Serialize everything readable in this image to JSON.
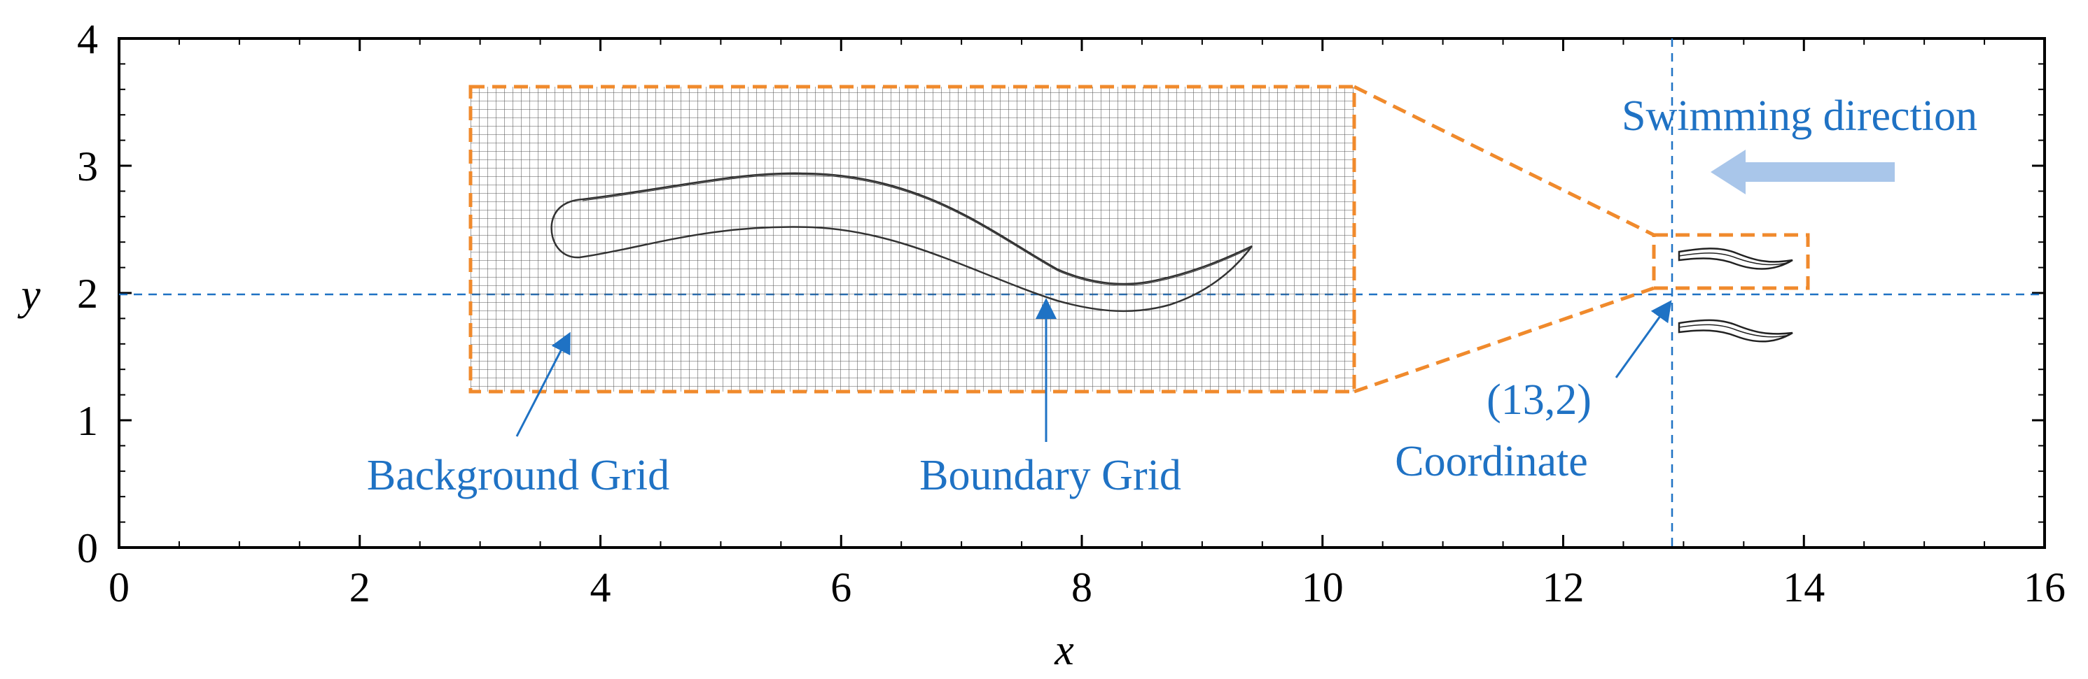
{
  "figure": {
    "x_axis": {
      "title": "x",
      "range": [
        0,
        16
      ],
      "major_ticks": [
        0,
        2,
        4,
        6,
        8,
        10,
        12,
        14,
        16
      ],
      "tick_labels": [
        "0",
        "2",
        "4",
        "6",
        "8",
        "10",
        "12",
        "14",
        "16"
      ]
    },
    "y_axis": {
      "title": "y",
      "range": [
        0,
        4
      ],
      "major_ticks": [
        0,
        1,
        2,
        3,
        4
      ],
      "tick_labels": [
        "0",
        "1",
        "2",
        "3",
        "4"
      ]
    },
    "colors": {
      "annotation": "#1f72c4",
      "inset_frame": "#f08a2c",
      "arrow_fill": "#a9c6ea",
      "grid_line": "#555555",
      "axis": "#000000"
    },
    "reference_lines": {
      "x": 13,
      "y": 2
    },
    "inset_grid_extent": {
      "x": [
        3.2,
        10.4
      ],
      "y": [
        1.2,
        3.7
      ]
    },
    "small_box_extent": {
      "x": [
        12.85,
        14.1
      ],
      "y": [
        2.05,
        2.5
      ]
    },
    "labels": {
      "swimming_direction": "Swimming direction",
      "background_grid": "Background Grid",
      "boundary_grid": "Boundary Grid",
      "coordinate_value": "(13,2)",
      "coordinate": "Coordinate"
    }
  }
}
